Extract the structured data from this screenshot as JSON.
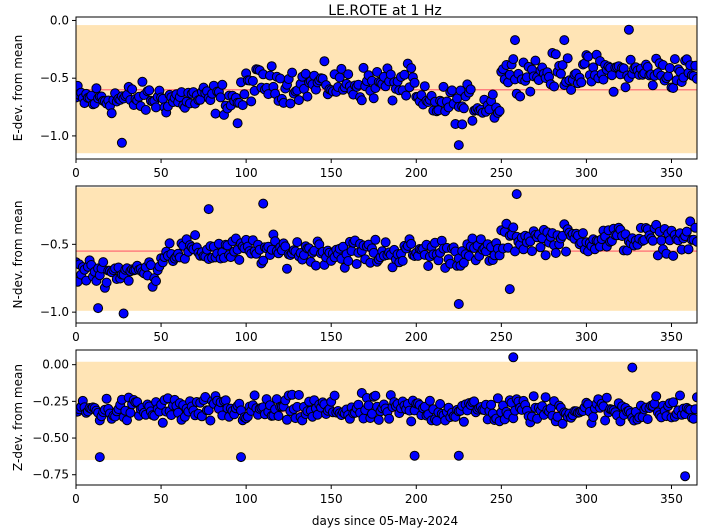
{
  "chart_data": {
    "type": "scatter",
    "title": "LE.ROTE at 1 Hz",
    "xlabel": "days since 05-May-2024",
    "x_ticks": [
      0,
      50,
      100,
      150,
      200,
      250,
      300,
      350
    ],
    "x_tick_labels": [
      "0",
      "50",
      "100",
      "150",
      "200",
      "250",
      "300",
      "350"
    ],
    "xlim": [
      0,
      365
    ],
    "colors": {
      "marker_fill": "#0000ff",
      "marker_edge": "#000000",
      "mean_line": "#ff7f7f",
      "band": "#ffe4b5"
    },
    "panels": [
      {
        "ylabel": "E-dev. from mean",
        "ylim": [
          -1.2,
          0.03
        ],
        "y_ticks": [
          0.0,
          -0.5,
          -1.0
        ],
        "y_tick_labels": [
          "0.0",
          "−0.5",
          "−1.0"
        ],
        "band": [
          -1.15,
          -0.04
        ],
        "mean": -0.6,
        "series": [
          {
            "days_from": 0,
            "days_to": 100,
            "center": -0.68,
            "amp": 0.2
          },
          {
            "days_from": 100,
            "days_to": 200,
            "center": -0.55,
            "amp": 0.22
          },
          {
            "days_from": 200,
            "days_to": 250,
            "center": -0.72,
            "amp": 0.22
          },
          {
            "days_from": 250,
            "days_to": 366,
            "center": -0.45,
            "amp": 0.22
          }
        ],
        "outliers": [
          [
            27,
            -1.06
          ],
          [
            225,
            -1.08
          ],
          [
            95,
            -0.89
          ],
          [
            258,
            -0.17
          ],
          [
            287,
            -0.17
          ],
          [
            325,
            -0.08
          ],
          [
            227,
            -0.9
          ]
        ]
      },
      {
        "ylabel": "N-dev. from mean",
        "ylim": [
          -1.08,
          -0.07
        ],
        "y_ticks": [
          -0.5,
          -1.0
        ],
        "y_tick_labels": [
          "−0.5",
          "−1.0"
        ],
        "band": [
          -0.99,
          -0.08
        ],
        "mean": -0.55,
        "series": [
          {
            "days_from": 0,
            "days_to": 50,
            "center": -0.7,
            "amp": 0.14
          },
          {
            "days_from": 50,
            "days_to": 150,
            "center": -0.55,
            "amp": 0.15
          },
          {
            "days_from": 150,
            "days_to": 250,
            "center": -0.56,
            "amp": 0.16
          },
          {
            "days_from": 250,
            "days_to": 366,
            "center": -0.46,
            "amp": 0.15
          }
        ],
        "outliers": [
          [
            28,
            -1.01
          ],
          [
            13,
            -0.97
          ],
          [
            225,
            -0.94
          ],
          [
            259,
            -0.13
          ],
          [
            110,
            -0.2
          ],
          [
            255,
            -0.83
          ],
          [
            78,
            -0.24
          ]
        ]
      },
      {
        "ylabel": "Z-dev. from mean",
        "ylim": [
          -0.82,
          0.1
        ],
        "y_ticks": [
          0.0,
          -0.25,
          -0.5,
          -0.75
        ],
        "y_tick_labels": [
          "0.00",
          "−0.25",
          "−0.50",
          "−0.75"
        ],
        "band": [
          -0.65,
          0.02
        ],
        "mean": -0.32,
        "series": [
          {
            "days_from": 0,
            "days_to": 366,
            "center": -0.31,
            "amp": 0.14
          }
        ],
        "outliers": [
          [
            257,
            0.05
          ],
          [
            358,
            -0.76
          ],
          [
            97,
            -0.63
          ],
          [
            14,
            -0.63
          ],
          [
            225,
            -0.62
          ],
          [
            199,
            -0.62
          ],
          [
            327,
            -0.02
          ]
        ]
      }
    ]
  }
}
